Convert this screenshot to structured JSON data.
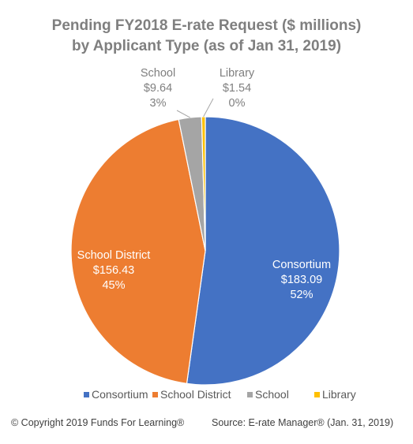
{
  "chart_data": {
    "type": "pie",
    "title_lines": [
      "Pending FY2018 E-rate Request ($ millions)",
      "by Applicant Type (as of Jan 31, 2019)"
    ],
    "slices": [
      {
        "name": "Consortium",
        "value": 183.09,
        "value_label": "$183.09",
        "percent_label": "52%",
        "color": "#4472c4",
        "label_color": "#ffffff"
      },
      {
        "name": "School District",
        "value": 156.43,
        "value_label": "$156.43",
        "percent_label": "45%",
        "color": "#ed7d31",
        "label_color": "#ffffff"
      },
      {
        "name": "School",
        "value": 9.64,
        "value_label": "$9.64",
        "percent_label": "3%",
        "color": "#a5a5a5",
        "label_color": "#7f7f7f"
      },
      {
        "name": "Library",
        "value": 1.54,
        "value_label": "$1.54",
        "percent_label": "0%",
        "color": "#ffc000",
        "label_color": "#7f7f7f"
      }
    ],
    "legend_position": "bottom"
  },
  "footer": {
    "copyright": "© Copyright 2019 Funds For Learning®",
    "source": "Source: E-rate Manager® (Jan. 31, 2019)"
  }
}
